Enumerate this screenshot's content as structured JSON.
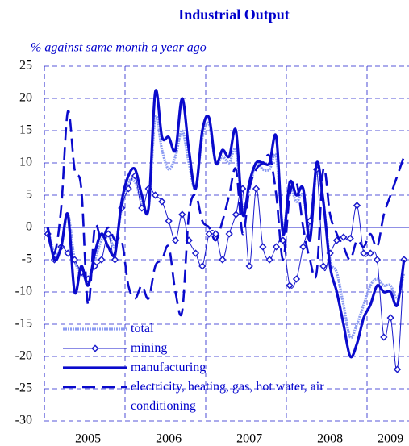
{
  "chart_data": {
    "type": "line",
    "title": "Industrial Output",
    "subtitle": "% against same month a year ago",
    "categories": [
      null,
      null,
      null,
      null,
      null,
      null,
      "2005",
      null,
      null,
      null,
      null,
      null,
      null,
      null,
      null,
      null,
      null,
      null,
      "2006",
      null,
      null,
      null,
      null,
      null,
      null,
      null,
      null,
      null,
      null,
      null,
      "2007",
      null,
      null,
      null,
      null,
      null,
      null,
      null,
      null,
      null,
      null,
      null,
      "2008",
      null,
      null,
      null,
      null,
      null,
      null,
      null,
      null,
      "2009",
      null,
      null
    ],
    "ylim": [
      -30,
      25
    ],
    "yticks": [
      -30,
      -25,
      -20,
      -15,
      -10,
      -5,
      0,
      5,
      10,
      15,
      20,
      25
    ],
    "grid": true,
    "legend": "lower left",
    "series": [
      {
        "name": "total",
        "color": "#8c9cf2",
        "style": "thick",
        "values": [
          0,
          -4,
          -3,
          2,
          -5,
          -7,
          -8,
          -5,
          -2,
          -1,
          -3,
          3,
          7,
          7,
          4,
          3,
          17,
          12,
          9,
          11,
          15,
          10,
          6,
          14,
          16,
          10,
          11,
          10,
          12,
          3,
          6,
          10,
          9,
          9,
          11,
          0,
          6,
          4,
          5,
          -1,
          9,
          4,
          -5,
          -7,
          -12,
          -17,
          -15,
          -12,
          -9,
          -8,
          -9,
          -9,
          -11,
          -7
        ]
      },
      {
        "name": "mining",
        "color": "#1a1acc",
        "style": "thin",
        "marker": "diamond",
        "values": [
          -1,
          -5,
          -3,
          -4,
          -5,
          -7,
          -8,
          -6,
          -5,
          -1,
          -5,
          3,
          6,
          8,
          3,
          6,
          5,
          4,
          1,
          -2,
          2,
          -2,
          -4,
          -6,
          -1,
          -1,
          -5,
          -1,
          2,
          6,
          -6,
          6,
          -3,
          -5,
          -3,
          -2,
          -9,
          -8,
          -3,
          1,
          9,
          -6,
          -4,
          -2,
          -1.5,
          -1.7,
          3.4,
          -4,
          -4,
          -5,
          -17,
          -14,
          -22,
          -5
        ]
      },
      {
        "name": "manufacturing",
        "color": "#0a0acc",
        "style": "thick",
        "values": [
          0,
          -5,
          -3,
          2,
          -10,
          -6,
          -9,
          -4,
          -1,
          -3,
          -4,
          4,
          8,
          9,
          5,
          3,
          21,
          14,
          14,
          12,
          20,
          12,
          6,
          15,
          17,
          10,
          12,
          11,
          15,
          2,
          7,
          10,
          10,
          10,
          14,
          -1,
          7,
          5,
          6,
          -2,
          10,
          4,
          -6,
          -10,
          -15,
          -20,
          -18,
          -14,
          -12,
          -9,
          -10,
          -10,
          -12,
          -5
        ]
      },
      {
        "name": "electricity, heating, gas, hot water, air conditioning",
        "color": "#0a0acc",
        "style": "dashed",
        "values": [
          -1,
          -4,
          3,
          18,
          9,
          6,
          -12,
          0,
          -2,
          0,
          -2,
          -2,
          -9,
          -11,
          -9,
          -11,
          -6,
          -5,
          -3,
          -10,
          -13,
          2,
          5,
          1,
          0,
          -2,
          1,
          5,
          9,
          -1,
          6,
          9,
          10,
          11,
          5,
          -5,
          5,
          7,
          0,
          -5,
          -7,
          9,
          2,
          -1,
          -3,
          -5,
          -2,
          -3,
          -1,
          -3,
          2,
          5,
          8,
          11
        ]
      }
    ]
  }
}
